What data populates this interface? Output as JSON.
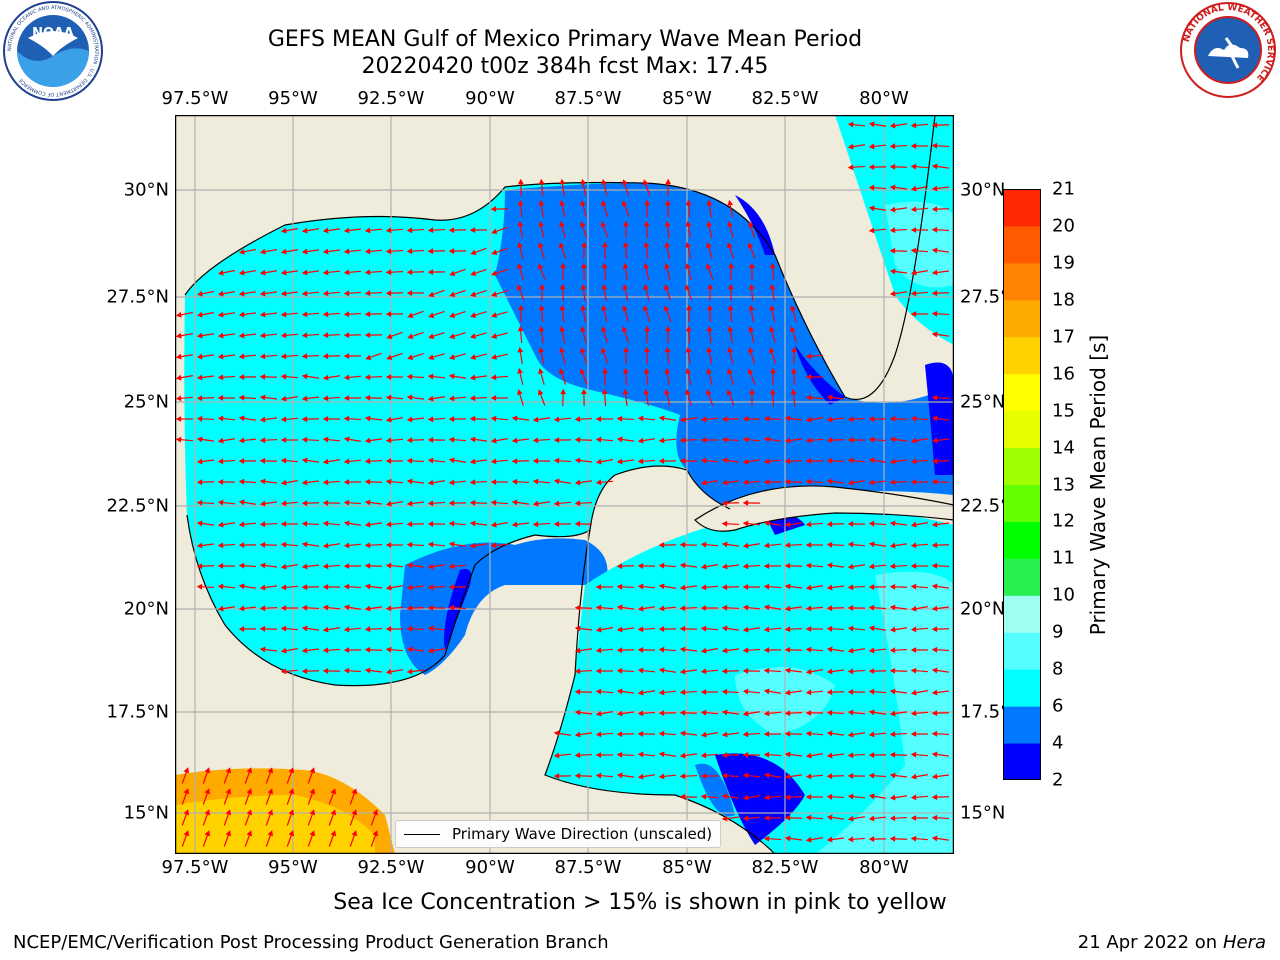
{
  "header": {
    "title_line1": "GEFS MEAN Gulf of Mexico Primary Wave Mean Period",
    "title_line2": "20220420 t00z 384h fcst   Max: 17.45"
  },
  "logos": {
    "noaa_text": "NOAA",
    "noaa_ring": "NATIONAL OCEANIC AND ATMOSPHERIC ADMINISTRATION · U.S. DEPARTMENT OF COMMERCE",
    "nws_ring": "NATIONAL WEATHER SERVICE"
  },
  "map": {
    "lon_ticks": [
      "97.5°W",
      "95°W",
      "92.5°W",
      "90°W",
      "87.5°W",
      "85°W",
      "82.5°W",
      "80°W"
    ],
    "lat_ticks_left": [
      "30°N",
      "27.5°N",
      "25°N",
      "22.5°N",
      "20°N",
      "17.5°N",
      "15°N"
    ],
    "lat_ticks_right": [
      "30°N",
      "27.5°N",
      "25°N",
      "22.5°N",
      "20°N",
      "17.5°N",
      "15°N"
    ],
    "lon_range": [
      -98,
      -78.2
    ],
    "lat_range": [
      14.03,
      31.83
    ],
    "gridlines": true,
    "land_color": "#efecdc",
    "arrow_color": "#ff0000"
  },
  "legend": {
    "label": "Primary Wave Direction (unscaled)",
    "placement": "lower-center"
  },
  "colorbar": {
    "label": "Primary Wave Mean Period [s]",
    "ticks": [
      "21",
      "20",
      "19",
      "18",
      "17",
      "16",
      "15",
      "14",
      "13",
      "12",
      "11",
      "10",
      "9",
      "8",
      "6",
      "4",
      "2"
    ],
    "colors": [
      "#0000ff",
      "#0078ff",
      "#00ffff",
      "#55ffff",
      "#a0fff0",
      "#28f050",
      "#00ff00",
      "#64ff00",
      "#a0ff00",
      "#e6ff00",
      "#ffff00",
      "#ffd200",
      "#ffaa00",
      "#ff8200",
      "#ff5a00",
      "#ff2800"
    ]
  },
  "footer": {
    "note": "Sea Ice Concentration > 15% is shown in pink to yellow",
    "left": "NCEP/EMC/Verification Post Processing Product Generation Branch",
    "right_date": "21 Apr 2022 on",
    "right_host": "Hera"
  }
}
